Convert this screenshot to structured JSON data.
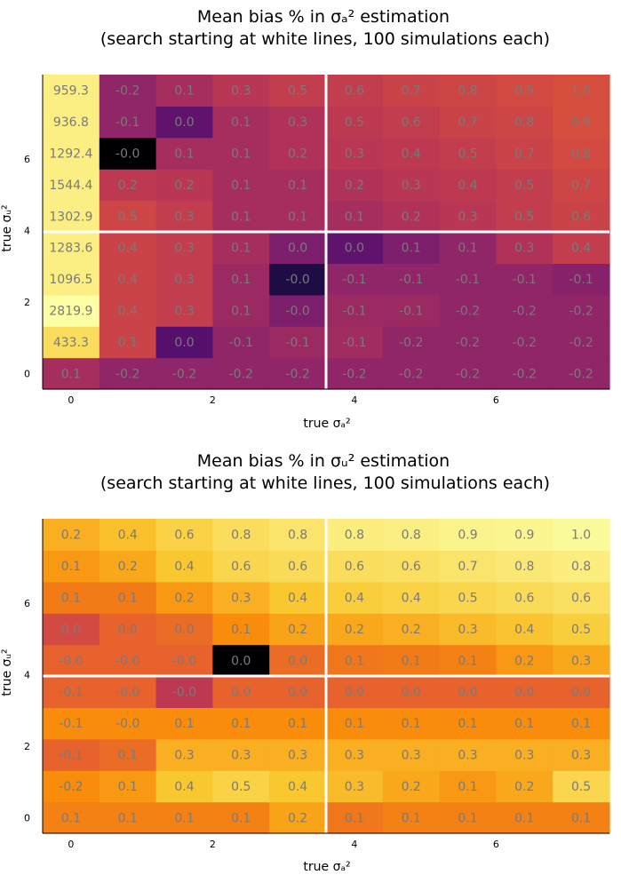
{
  "chart_data": [
    {
      "type": "heatmap",
      "title_line1": "Mean bias % in σₐ² estimation",
      "title_line2": "(search starting at white lines, 100 simulations each)",
      "xlabel": "true σₐ²",
      "ylabel": "true σᵤ²",
      "x_ticks": [
        "0",
        "2",
        "4",
        "6"
      ],
      "y_ticks": [
        "0",
        "2",
        "4",
        "6"
      ],
      "x_values": [
        0,
        0.8,
        1.6,
        2.4,
        3.2,
        4.0,
        4.8,
        5.6,
        6.4,
        7.2
      ],
      "y_values": [
        0,
        0.88,
        1.76,
        2.64,
        3.52,
        4.4,
        5.28,
        6.16,
        7.04,
        7.92
      ],
      "white_line_x": 3.6,
      "white_line_y": 3.96,
      "colormap": "inferno",
      "color_range": [
        -0.2,
        1.0
      ],
      "rows": [
        {
          "labels": [
            "0.1",
            "-0.2",
            "-0.2",
            "-0.2",
            "-0.2",
            "-0.2",
            "-0.2",
            "-0.2",
            "-0.2",
            "-0.2"
          ],
          "colors": [
            -0.1,
            -0.2,
            -0.2,
            -0.2,
            -0.2,
            -0.2,
            -0.2,
            -0.2,
            -0.2,
            -0.2
          ]
        },
        {
          "labels": [
            "433.3",
            "0.1",
            "0.0",
            "-0.1",
            "-0.1",
            "-0.1",
            "-0.2",
            "-0.2",
            "-0.2",
            "-0.2"
          ],
          "colors": [
            0.85,
            0.1,
            -0.5,
            -0.2,
            -0.15,
            -0.12,
            -0.2,
            -0.2,
            -0.2,
            -0.2
          ]
        },
        {
          "labels": [
            "2819.9",
            "0.4",
            "0.3",
            "0.1",
            "-0.0",
            "-0.1",
            "-0.1",
            "-0.2",
            "-0.2",
            "-0.2"
          ],
          "colors": [
            1.0,
            0.1,
            0.05,
            -0.15,
            -0.3,
            -0.15,
            -0.15,
            -0.2,
            -0.2,
            -0.2
          ]
        },
        {
          "labels": [
            "1096.5",
            "0.4",
            "0.3",
            "0.1",
            "-0.0",
            "-0.1",
            "-0.1",
            "-0.1",
            "-0.1",
            "-0.1"
          ],
          "colors": [
            0.93,
            0.1,
            0.05,
            -0.15,
            -0.75,
            -0.2,
            -0.2,
            -0.2,
            -0.2,
            -0.25
          ]
        },
        {
          "labels": [
            "1283.6",
            "0.4",
            "0.3",
            "0.1",
            "0.0",
            "0.0",
            "0.1",
            "0.1",
            "0.3",
            "0.4"
          ],
          "colors": [
            0.93,
            0.1,
            0.05,
            -0.1,
            -0.3,
            -0.45,
            -0.3,
            -0.2,
            -0.05,
            0.05
          ]
        },
        {
          "labels": [
            "1302.9",
            "0.5",
            "0.3",
            "0.1",
            "0.1",
            "0.1",
            "0.2",
            "0.3",
            "0.5",
            "0.6"
          ],
          "colors": [
            0.93,
            0.12,
            0.05,
            -0.1,
            -0.1,
            -0.1,
            -0.05,
            0.0,
            0.05,
            0.1
          ]
        },
        {
          "labels": [
            "1544.4",
            "0.2",
            "0.2",
            "0.1",
            "0.1",
            "0.2",
            "0.3",
            "0.4",
            "0.5",
            "0.7"
          ],
          "colors": [
            0.93,
            0.02,
            0.0,
            -0.1,
            -0.1,
            -0.05,
            0.0,
            0.02,
            0.05,
            0.12
          ]
        },
        {
          "labels": [
            "1292.4",
            "-0.0",
            "0.1",
            "0.1",
            "0.2",
            "0.3",
            "0.4",
            "0.5",
            "0.7",
            "0.8"
          ],
          "colors": [
            0.93,
            -1.0,
            -0.1,
            -0.1,
            -0.05,
            0.0,
            0.02,
            0.05,
            0.1,
            0.15
          ]
        },
        {
          "labels": [
            "936.8",
            "-0.1",
            "0.0",
            "0.1",
            "0.3",
            "0.5",
            "0.6",
            "0.7",
            "0.8",
            "0.9"
          ],
          "colors": [
            0.93,
            -0.2,
            -0.45,
            -0.1,
            -0.05,
            0.02,
            0.05,
            0.1,
            0.12,
            0.18
          ]
        },
        {
          "labels": [
            "959.3",
            "-0.2",
            "0.1",
            "0.3",
            "0.5",
            "0.6",
            "0.7",
            "0.8",
            "0.9",
            "1.0"
          ],
          "colors": [
            0.93,
            -0.2,
            -0.1,
            0.0,
            0.05,
            0.05,
            0.1,
            0.12,
            0.15,
            0.18
          ]
        }
      ]
    },
    {
      "type": "heatmap",
      "title_line1": "Mean bias % in σᵤ² estimation",
      "title_line2": "(search starting at white lines, 100 simulations each)",
      "xlabel": "true σₐ²",
      "ylabel": "true σᵤ²",
      "x_ticks": [
        "0",
        "2",
        "4",
        "6"
      ],
      "y_ticks": [
        "0",
        "2",
        "4",
        "6"
      ],
      "x_values": [
        0,
        0.8,
        1.6,
        2.4,
        3.2,
        4.0,
        4.8,
        5.6,
        6.4,
        7.2
      ],
      "y_values": [
        0,
        0.88,
        1.76,
        2.64,
        3.52,
        4.4,
        5.28,
        6.16,
        7.04,
        7.92
      ],
      "white_line_x": 3.6,
      "white_line_y": 3.96,
      "colormap": "inferno",
      "color_range": [
        -0.2,
        1.0
      ],
      "rows": [
        {
          "labels": [
            "0.1",
            "0.1",
            "0.1",
            "0.1",
            "0.2",
            "0.1",
            "0.1",
            "0.1",
            "0.1",
            "0.1"
          ],
          "colors": [
            0.45,
            0.45,
            0.45,
            0.45,
            0.6,
            0.4,
            0.45,
            0.45,
            0.45,
            0.45
          ]
        },
        {
          "labels": [
            "-0.2",
            "0.1",
            "0.4",
            "0.5",
            "0.4",
            "0.3",
            "0.2",
            "0.1",
            "0.2",
            "0.5"
          ],
          "colors": [
            0.5,
            0.55,
            0.75,
            0.8,
            0.75,
            0.7,
            0.62,
            0.55,
            0.62,
            0.82
          ]
        },
        {
          "labels": [
            "-0.1",
            "0.1",
            "0.3",
            "0.3",
            "0.3",
            "0.3",
            "0.3",
            "0.3",
            "0.3",
            "0.3"
          ],
          "colors": [
            0.3,
            0.35,
            0.65,
            0.65,
            0.65,
            0.65,
            0.65,
            0.65,
            0.65,
            0.65
          ]
        },
        {
          "labels": [
            "-0.1",
            "-0.0",
            "0.1",
            "0.1",
            "0.1",
            "0.1",
            "0.1",
            "0.1",
            "0.1",
            "0.1"
          ],
          "colors": [
            0.5,
            0.5,
            0.5,
            0.5,
            0.5,
            0.5,
            0.5,
            0.5,
            0.5,
            0.5
          ]
        },
        {
          "labels": [
            "-0.1",
            "-0.0",
            "-0.0",
            "0.0",
            "0.0",
            "0.0",
            "0.0",
            "0.0",
            "0.0",
            "0.0"
          ],
          "colors": [
            0.3,
            0.3,
            0.02,
            0.3,
            0.3,
            0.3,
            0.3,
            0.3,
            0.3,
            0.3
          ]
        },
        {
          "labels": [
            "-0.0",
            "-0.0",
            "-0.0",
            "0.0",
            "0.0",
            "0.1",
            "0.1",
            "0.1",
            "0.2",
            "0.3"
          ],
          "colors": [
            0.3,
            0.3,
            0.3,
            -1.0,
            0.35,
            0.4,
            0.42,
            0.45,
            0.55,
            0.62
          ]
        },
        {
          "labels": [
            "0.0",
            "0.0",
            "0.0",
            "0.1",
            "0.2",
            "0.2",
            "0.2",
            "0.3",
            "0.4",
            "0.5"
          ],
          "colors": [
            0.15,
            0.3,
            0.35,
            0.5,
            0.6,
            0.62,
            0.65,
            0.7,
            0.74,
            0.78
          ]
        },
        {
          "labels": [
            "0.1",
            "0.1",
            "0.2",
            "0.3",
            "0.4",
            "0.4",
            "0.4",
            "0.5",
            "0.6",
            "0.6"
          ],
          "colors": [
            0.42,
            0.42,
            0.55,
            0.65,
            0.75,
            0.78,
            0.8,
            0.82,
            0.84,
            0.86
          ]
        },
        {
          "labels": [
            "0.1",
            "0.2",
            "0.4",
            "0.6",
            "0.6",
            "0.6",
            "0.6",
            "0.7",
            "0.8",
            "0.8"
          ],
          "colors": [
            0.55,
            0.62,
            0.75,
            0.82,
            0.84,
            0.85,
            0.86,
            0.88,
            0.9,
            0.92
          ]
        },
        {
          "labels": [
            "0.2",
            "0.4",
            "0.6",
            "0.8",
            "0.8",
            "0.8",
            "0.8",
            "0.9",
            "0.9",
            "1.0"
          ],
          "colors": [
            0.65,
            0.72,
            0.8,
            0.85,
            0.88,
            0.92,
            0.93,
            0.95,
            0.96,
            0.98
          ]
        }
      ]
    }
  ]
}
